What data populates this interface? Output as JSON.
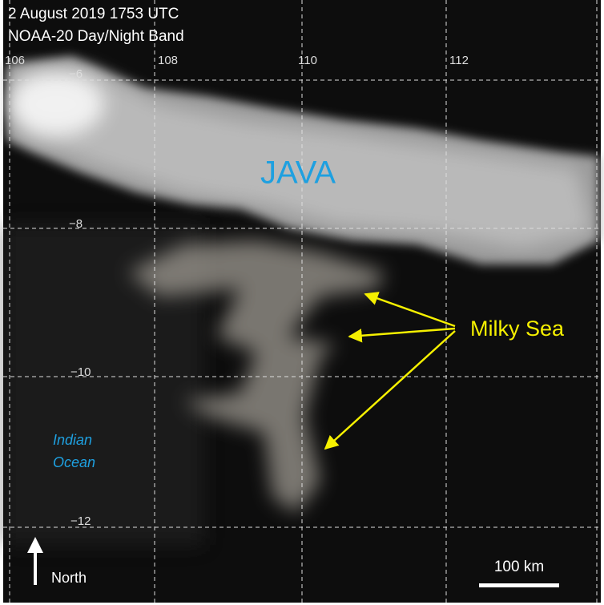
{
  "header": {
    "date": "2 August 2019 1753 UTC",
    "sensor": "NOAA-20 Day/Night Band"
  },
  "grid": {
    "longitude_labels": [
      "106",
      "108",
      "110",
      "112"
    ],
    "latitude_labels": [
      "−6",
      "−8",
      "−10",
      "−12"
    ]
  },
  "labels": {
    "island": "JAVA",
    "feature": "Milky Sea",
    "ocean": [
      "Indian",
      "Ocean"
    ],
    "north": "North",
    "scale": "100 km"
  }
}
